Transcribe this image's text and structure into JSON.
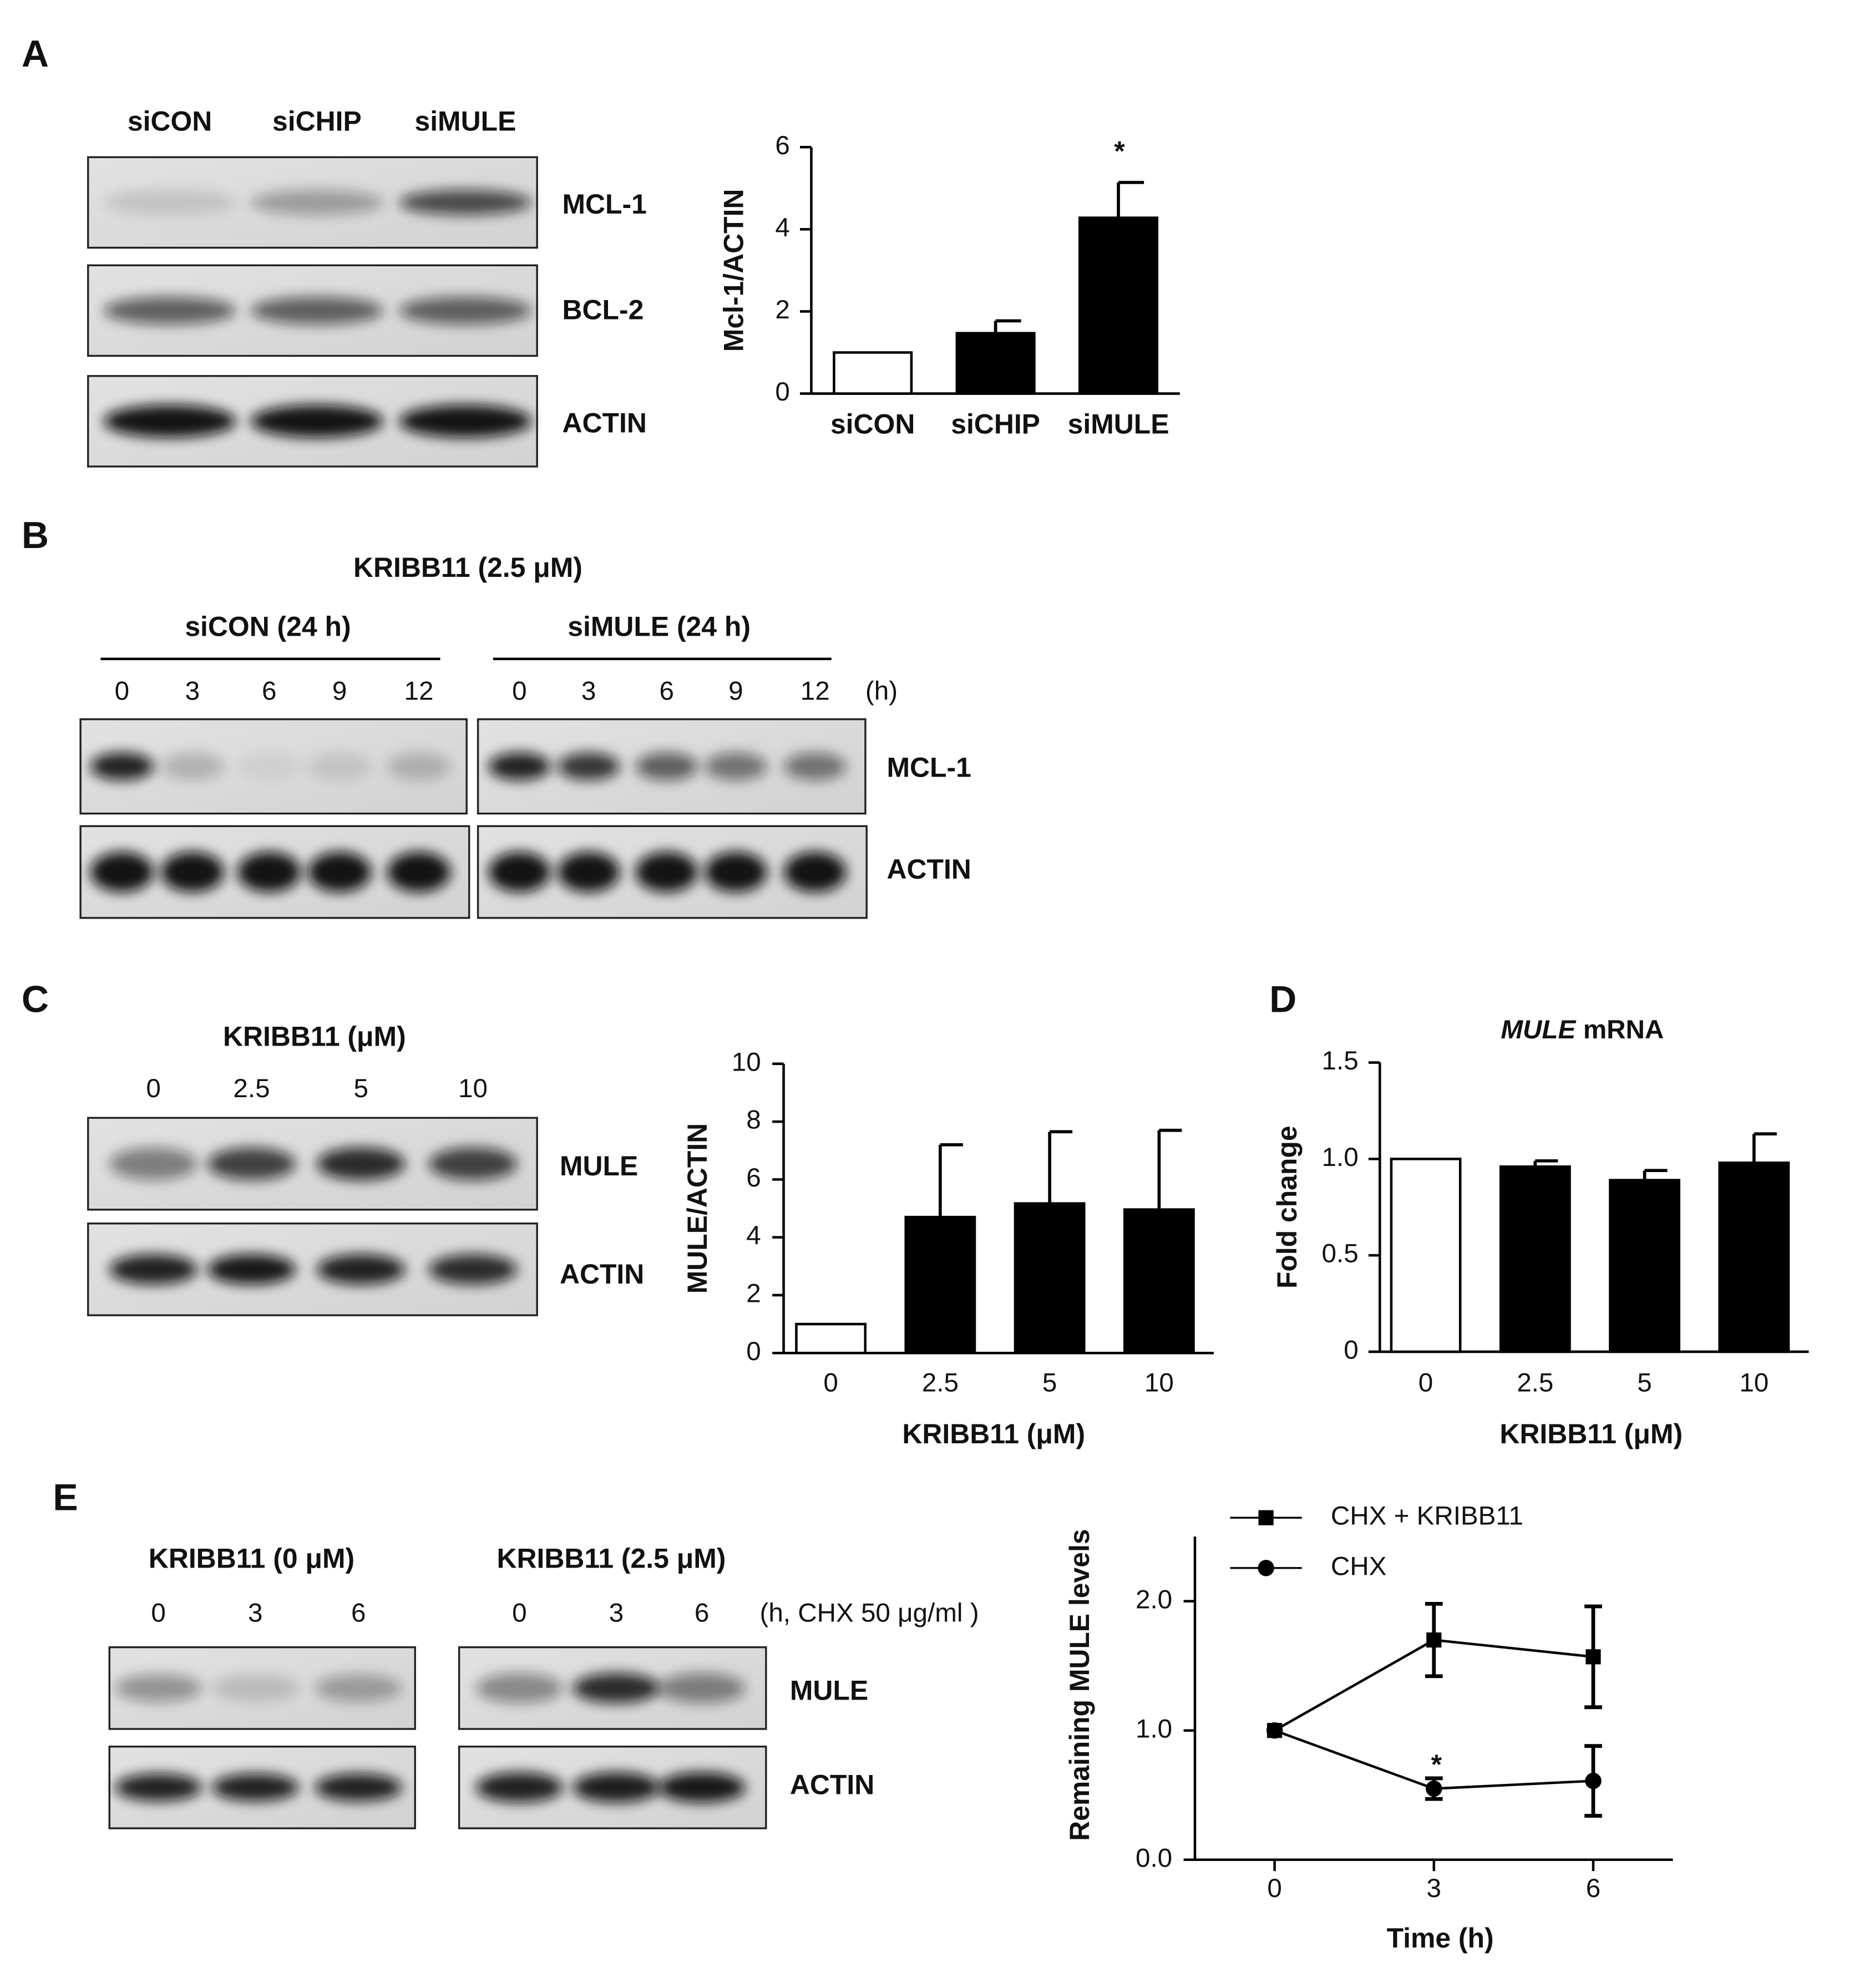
{
  "labels": [
    "A",
    "B",
    "C",
    "D",
    "E"
  ],
  "blot_a": {
    "lanes": [
      "siCON",
      "siCHIP",
      "siMULE"
    ],
    "rows": [
      "MCL-1",
      "BCL-2",
      "ACTIN"
    ]
  },
  "blot_b": {
    "title": "KRIBB11 (2.5 μM)",
    "groups": [
      "siCON (24 h)",
      "siMULE (24 h)"
    ],
    "times": [
      [
        "0",
        "3",
        "6",
        "9",
        "12"
      ],
      [
        "0",
        "3",
        "6",
        "9",
        "12"
      ]
    ],
    "unit": "(h)",
    "rows": [
      "MCL-1",
      "ACTIN"
    ]
  },
  "blot_c": {
    "title": "KRIBB11 (μM)",
    "lanes": [
      "0",
      "2.5",
      "5",
      "10"
    ],
    "rows": [
      "MULE",
      "ACTIN"
    ]
  },
  "blot_e": {
    "groups": [
      "KRIBB11 (0 μM)",
      "KRIBB11 (2.5 μM)"
    ],
    "times": [
      [
        "0",
        "3",
        "6"
      ],
      [
        "0",
        "3",
        "6"
      ]
    ],
    "unit": "(h, CHX 50 μg/ml )",
    "rows": [
      "MULE",
      "ACTIN"
    ]
  },
  "chart_data": [
    {
      "type": "bar",
      "y_label": "Mcl-1/ACTIN",
      "categories": [
        "siCON",
        "siCHIP",
        "siMULE"
      ],
      "values": [
        1,
        1.47,
        4.28
      ],
      "errors": [
        null,
        0.3,
        0.86
      ],
      "colors": [
        "#ffffff",
        "#000000",
        "#000000"
      ],
      "ylim": [
        0,
        6
      ],
      "yticks": [
        0,
        2,
        4,
        6
      ],
      "annotations": [
        "*"
      ]
    },
    {
      "type": "bar",
      "x_label": "KRIBB11 (μM)",
      "y_label": "MULE/ACTIN",
      "categories": [
        "0",
        "2.5",
        "5",
        "10"
      ],
      "values": [
        1,
        4.7,
        5.17,
        4.96
      ],
      "errors": [
        null,
        2.5,
        2.48,
        2.74
      ],
      "colors": [
        "#ffffff",
        "#000000",
        "#000000",
        "#000000"
      ],
      "ylim": [
        0,
        10
      ],
      "yticks": [
        0,
        2,
        4,
        6,
        8,
        10
      ]
    },
    {
      "type": "bar",
      "title": {
        "gene": "MULE",
        "text": "mRNA"
      },
      "x_label": "KRIBB11 (μM)",
      "y_label": "Fold change",
      "categories": [
        "0",
        "2.5",
        "5",
        "10"
      ],
      "values": [
        1,
        0.96,
        0.89,
        0.98
      ],
      "errors": [
        null,
        0.03,
        0.05,
        0.15
      ],
      "colors": [
        "#ffffff",
        "#000000",
        "#000000",
        "#000000"
      ],
      "ylim": [
        0,
        1.5
      ],
      "yticks": [
        0,
        0.5,
        {
          "value": 1,
          "label": "1.0"
        },
        1.5
      ]
    },
    {
      "type": "line",
      "x_label": "Time (h)",
      "y_label": "Remaining MULE levels",
      "x": [
        0,
        3,
        6
      ],
      "xlim": [
        -1.5,
        7.5
      ],
      "xticks": [
        0,
        3,
        6
      ],
      "ylim": [
        0,
        2.5
      ],
      "yticks": [
        {
          "value": 0,
          "label": "0.0"
        },
        {
          "value": 1,
          "label": "1.0"
        },
        {
          "value": 2,
          "label": "2.0"
        }
      ],
      "series": [
        {
          "name": "CHX + KRIBB11",
          "marker": "square",
          "color": "#000000",
          "values": [
            1,
            1.7,
            1.57
          ],
          "errors": [
            null,
            0.28,
            0.39
          ]
        },
        {
          "name": "CHX",
          "marker": "circle",
          "color": "#000000",
          "values": [
            1,
            0.55,
            0.61
          ],
          "errors": [
            null,
            0.08,
            0.27
          ]
        }
      ],
      "annotations": [
        "*"
      ]
    }
  ]
}
